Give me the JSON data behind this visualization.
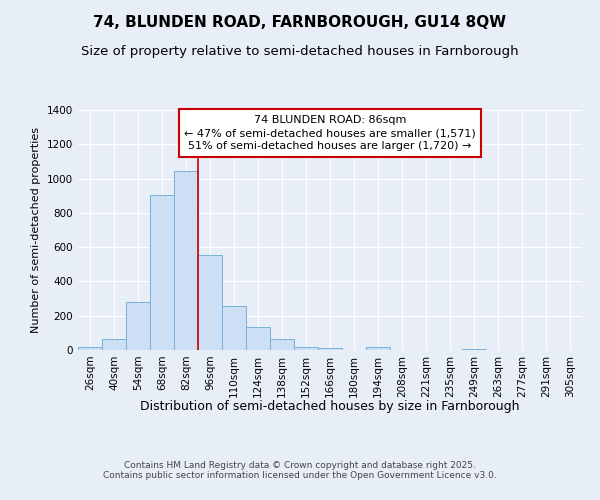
{
  "title": "74, BLUNDEN ROAD, FARNBOROUGH, GU14 8QW",
  "subtitle": "Size of property relative to semi-detached houses in Farnborough",
  "xlabel": "Distribution of semi-detached houses by size in Farnborough",
  "ylabel": "Number of semi-detached properties",
  "categories": [
    "26sqm",
    "40sqm",
    "54sqm",
    "68sqm",
    "82sqm",
    "96sqm",
    "110sqm",
    "124sqm",
    "138sqm",
    "152sqm",
    "166sqm",
    "180sqm",
    "194sqm",
    "208sqm",
    "221sqm",
    "235sqm",
    "249sqm",
    "263sqm",
    "277sqm",
    "291sqm",
    "305sqm"
  ],
  "values": [
    18,
    65,
    280,
    905,
    1045,
    555,
    255,
    135,
    65,
    20,
    12,
    0,
    15,
    0,
    0,
    0,
    8,
    0,
    0,
    0,
    0
  ],
  "bar_color": "#ccdff5",
  "bar_edge_color": "#7ab0d8",
  "vline_color": "#cc0000",
  "vline_pos": 4.5,
  "annotation_text": "74 BLUNDEN ROAD: 86sqm\n← 47% of semi-detached houses are smaller (1,571)\n51% of semi-detached houses are larger (1,720) →",
  "annotation_box_facecolor": "white",
  "annotation_box_edgecolor": "#cc0000",
  "footer_text": "Contains HM Land Registry data © Crown copyright and database right 2025.\nContains public sector information licensed under the Open Government Licence v3.0.",
  "ylim": [
    0,
    1400
  ],
  "yticks": [
    0,
    200,
    400,
    600,
    800,
    1000,
    1200,
    1400
  ],
  "background_color": "#e8eef8",
  "title_fontsize": 11,
  "subtitle_fontsize": 9.5,
  "xlabel_fontsize": 9,
  "ylabel_fontsize": 8,
  "tick_fontsize": 7.5,
  "annotation_fontsize": 8,
  "footer_fontsize": 6.5
}
